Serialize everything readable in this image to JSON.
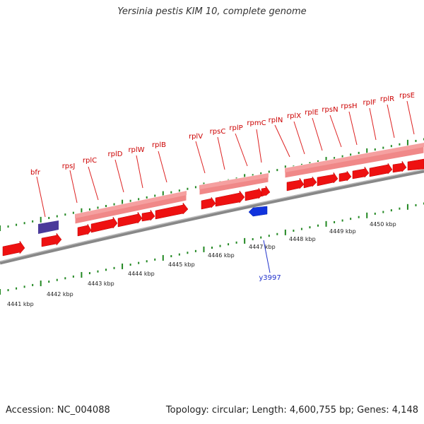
{
  "header": {
    "title": "Yersinia pestis KIM 10, complete genome"
  },
  "footer": {
    "accession": "Accession: NC_004088",
    "topology": "Topology: circular; Length: 4,600,755 bp; Genes: 4,148"
  },
  "colors": {
    "gene_red": "#ee1111",
    "gene_label_red": "#cc0000",
    "operon_pink": "#f08888",
    "blue_gene": "#1133dd",
    "purple_gene": "#4a3a9a",
    "tick_green": "#228822",
    "backbone": "#666666"
  },
  "scale": {
    "unit": "kbp",
    "labels": [
      "4441 kbp",
      "4442 kbp",
      "4443 kbp",
      "4444 kbp",
      "4445 kbp",
      "4446 kbp",
      "4447 kbp",
      "4448 kbp",
      "4449 kbp",
      "4450 kbp"
    ]
  },
  "gene_labels": [
    "bfr",
    "rpsJ",
    "rplC",
    "rplD",
    "rplW",
    "rplB",
    "rplV",
    "rpsC",
    "rplP",
    "rpmC",
    "rplN",
    "rplX",
    "rplE",
    "rpsN",
    "rpsH",
    "rplF",
    "rplR",
    "rpsE"
  ],
  "reverse_gene_label": "y3997"
}
